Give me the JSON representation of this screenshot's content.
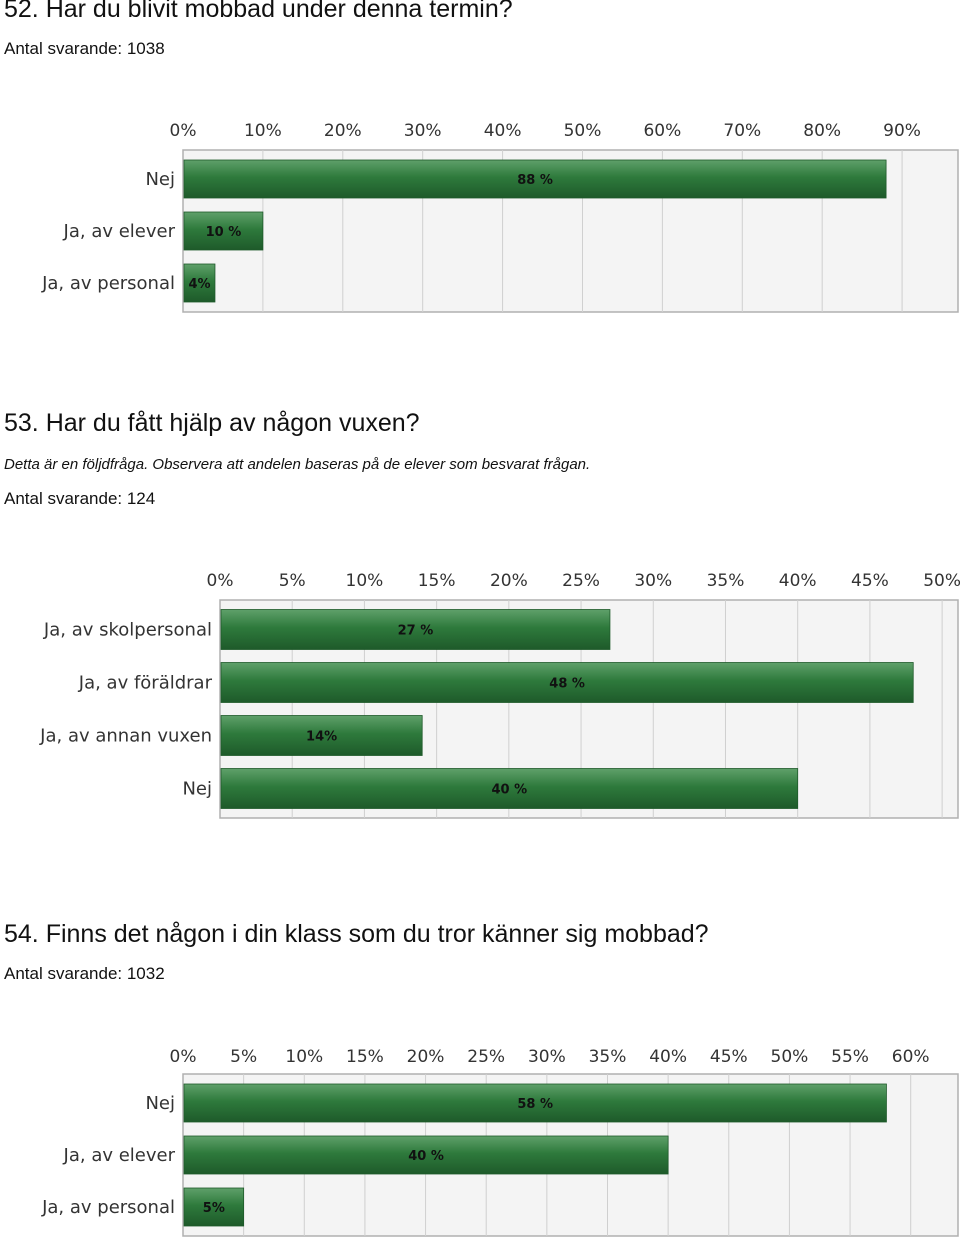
{
  "colors": {
    "bar": "#2e7a3c",
    "bar_light": "#5fa06a",
    "bar_dark": "#1e5a2a",
    "grid": "#cfcfcf",
    "frame": "#b0b0b0",
    "bg": "#f4f4f4"
  },
  "questions": [
    {
      "title": "52. Har du blivit mobbad under denna termin?",
      "note": "",
      "count": "Antal svarande: 1038"
    },
    {
      "title": "53. Har du fått hjälp av någon vuxen?",
      "note": "Detta är en följdfråga. Observera att andelen baseras på de elever som besvarat frågan.",
      "count": "Antal svarande: 124"
    },
    {
      "title": "54. Finns det någon i din klass som du tror känner sig mobbad?",
      "count": "Antal svarande: 1032"
    }
  ],
  "chart_data": [
    {
      "type": "bar",
      "orientation": "horizontal",
      "categories": [
        "Nej",
        "Ja, av elever",
        "Ja, av personal"
      ],
      "values": [
        88,
        10,
        4
      ],
      "value_labels": [
        "88 %",
        "10 %",
        "4%"
      ],
      "ticks": [
        "0%",
        "10%",
        "20%",
        "30%",
        "40%",
        "50%",
        "60%",
        "70%",
        "80%",
        "90%"
      ],
      "xlim": [
        0,
        97.0
      ],
      "grid": true
    },
    {
      "type": "bar",
      "orientation": "horizontal",
      "categories": [
        "Ja, av skolpersonal",
        "Ja, av föräldrar",
        "Ja, av annan vuxen",
        "Nej"
      ],
      "values": [
        27,
        48,
        14,
        40
      ],
      "value_labels": [
        "27 %",
        "48 %",
        "14%",
        "40 %"
      ],
      "ticks": [
        "0%",
        "5%",
        "10%",
        "15%",
        "20%",
        "25%",
        "30%",
        "35%",
        "40%",
        "45%",
        "50%"
      ],
      "xlim": [
        0,
        51.1
      ],
      "grid": true
    },
    {
      "type": "bar",
      "orientation": "horizontal",
      "categories": [
        "Nej",
        "Ja, av elever",
        "Ja, av personal"
      ],
      "values": [
        58,
        40,
        5
      ],
      "value_labels": [
        "58 %",
        "40 %",
        "5%"
      ],
      "ticks": [
        "0%",
        "5%",
        "10%",
        "15%",
        "20%",
        "25%",
        "30%",
        "35%",
        "40%",
        "45%",
        "50%",
        "55%",
        "60%"
      ],
      "xlim": [
        0,
        63.9
      ],
      "grid": true
    }
  ]
}
